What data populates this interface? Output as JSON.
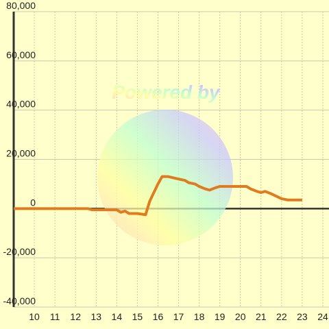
{
  "chart_data": {
    "type": "line",
    "watermark": "Powered by",
    "x": [
      9.0,
      12.6,
      12.8,
      13.0,
      13.5,
      14.0,
      14.2,
      14.4,
      14.6,
      15.0,
      15.4,
      15.6,
      16.0,
      16.2,
      16.5,
      17.0,
      17.3,
      17.5,
      17.8,
      18.0,
      18.3,
      18.5,
      18.8,
      19.0,
      19.5,
      20.0,
      20.3,
      20.5,
      20.8,
      21.0,
      21.2,
      21.5,
      22.0,
      22.3,
      23.0
    ],
    "series": [
      {
        "color": "#e07b20",
        "values": [
          0,
          0,
          -500,
          -500,
          -500,
          -500,
          -1500,
          -1000,
          -2000,
          -2000,
          -2500,
          3000,
          10000,
          13000,
          13000,
          12000,
          11500,
          10500,
          10000,
          9000,
          8000,
          7500,
          8500,
          9000,
          9000,
          9000,
          9000,
          8000,
          7000,
          6500,
          7000,
          6000,
          4000,
          3500,
          3500
        ]
      }
    ],
    "xlim": [
      9,
      24.3
    ],
    "xticks": [
      10,
      11,
      12,
      13,
      14,
      15,
      16,
      17,
      18,
      19,
      20,
      21,
      22,
      23,
      24
    ],
    "ylim": [
      -40000,
      80000
    ],
    "yticks": [
      {
        "value": -40000,
        "label": "-40,000"
      },
      {
        "value": -20000,
        "label": "-20,000"
      },
      0,
      {
        "value": 20000,
        "label": "20,000"
      },
      {
        "value": 40000,
        "label": "40,000"
      },
      {
        "value": 60000,
        "label": "60,000"
      },
      {
        "value": 80000,
        "label": "80,000"
      }
    ],
    "grid": true
  }
}
